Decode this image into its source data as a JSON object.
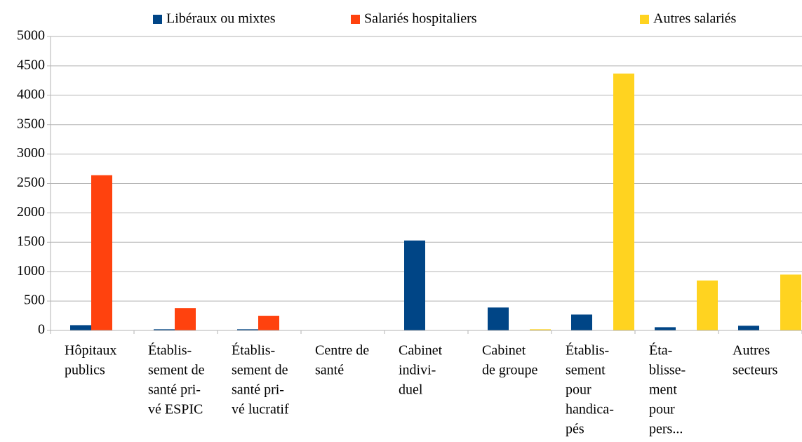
{
  "chart_data": {
    "type": "bar",
    "categories": [
      [
        "Hôpitaux",
        "publics"
      ],
      [
        "Établis-",
        "sement de",
        "santé pri-",
        "vé ESPIC"
      ],
      [
        "Établis-",
        "sement de",
        "santé pri-",
        "vé lucratif"
      ],
      [
        "Centre de",
        "santé"
      ],
      [
        "Cabinet",
        "indivi-",
        "duel"
      ],
      [
        "Cabinet",
        "de groupe"
      ],
      [
        "Établis-",
        "sement",
        "pour",
        "handica-",
        "pés"
      ],
      [
        "Éta-",
        "blisse-",
        "ment",
        "pour",
        "pers..."
      ],
      [
        "Autres",
        "secteurs"
      ]
    ],
    "series": [
      {
        "name": "Libéraux ou mixtes",
        "color": "#004586",
        "values": [
          90,
          20,
          20,
          0,
          1530,
          390,
          270,
          55,
          80
        ]
      },
      {
        "name": "Salariés hospitaliers",
        "color": "#ff420e",
        "values": [
          2640,
          380,
          250,
          0,
          0,
          0,
          0,
          0,
          0
        ]
      },
      {
        "name": "Autres salariés",
        "color": "#ffd320",
        "values": [
          0,
          0,
          0,
          5,
          5,
          20,
          4370,
          850,
          950
        ]
      }
    ],
    "ylim": [
      0,
      5000
    ],
    "yticks": [
      0,
      500,
      1000,
      1500,
      2000,
      2500,
      3000,
      3500,
      4000,
      4500,
      5000
    ],
    "grid": true,
    "legend": "top"
  }
}
